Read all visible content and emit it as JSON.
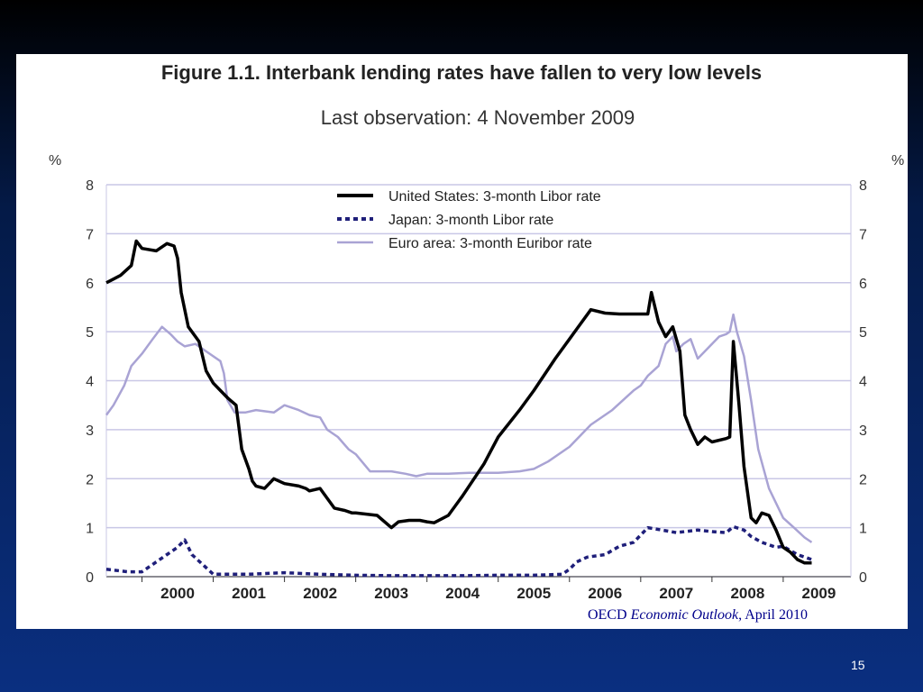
{
  "slide": {
    "number": "15",
    "source_prefix": "OECD ",
    "source_italic": "Economic Outlook",
    "source_suffix": ", April 2010"
  },
  "chart_data": {
    "type": "line",
    "title": "Figure 1.1. Interbank lending rates have fallen to very low levels",
    "subtitle": "Last observation: 4 November 2009",
    "ylabel_left": "%",
    "ylabel_right": "%",
    "ylim": [
      0,
      8
    ],
    "yticks": [
      0,
      1,
      2,
      3,
      4,
      5,
      6,
      7,
      8
    ],
    "xlim": [
      1999.5,
      2009.95
    ],
    "xticks": [
      "2000",
      "2001",
      "2002",
      "2003",
      "2004",
      "2005",
      "2006",
      "2007",
      "2008",
      "2009"
    ],
    "grid": true,
    "legend_position": "top-center",
    "series": [
      {
        "name": "United States: 3-month Libor rate",
        "color": "#000000",
        "style": "solid",
        "x": [
          1999.5,
          1999.7,
          1999.85,
          1999.92,
          2000.0,
          2000.2,
          2000.35,
          2000.45,
          2000.5,
          2000.55,
          2000.65,
          2000.8,
          2000.9,
          2001.0,
          2001.1,
          2001.2,
          2001.32,
          2001.4,
          2001.5,
          2001.55,
          2001.6,
          2001.72,
          2001.85,
          2002.0,
          2002.2,
          2002.3,
          2002.35,
          2002.5,
          2002.7,
          2002.85,
          2002.95,
          2003.0,
          2003.3,
          2003.5,
          2003.6,
          2003.75,
          2003.9,
          2004.0,
          2004.1,
          2004.3,
          2004.5,
          2004.8,
          2005.0,
          2005.3,
          2005.5,
          2005.8,
          2006.0,
          2006.1,
          2006.3,
          2006.5,
          2006.7,
          2006.9,
          2007.0,
          2007.1,
          2007.15,
          2007.25,
          2007.35,
          2007.45,
          2007.55,
          2007.62,
          2007.7,
          2007.8,
          2007.9,
          2008.0,
          2008.2,
          2008.25,
          2008.3,
          2008.38,
          2008.45,
          2008.55,
          2008.62,
          2008.7,
          2008.8,
          2008.9,
          2009.0,
          2009.1,
          2009.2,
          2009.3,
          2009.4
        ],
        "values": [
          6.0,
          6.15,
          6.35,
          6.85,
          6.7,
          6.65,
          6.8,
          6.75,
          6.5,
          5.8,
          5.1,
          4.8,
          4.2,
          3.95,
          3.8,
          3.65,
          3.5,
          2.6,
          2.2,
          1.95,
          1.85,
          1.8,
          2.0,
          1.9,
          1.85,
          1.8,
          1.75,
          1.8,
          1.4,
          1.35,
          1.3,
          1.3,
          1.25,
          1.0,
          1.12,
          1.15,
          1.15,
          1.12,
          1.1,
          1.25,
          1.65,
          2.3,
          2.85,
          3.4,
          3.8,
          4.45,
          4.85,
          5.05,
          5.45,
          5.38,
          5.36,
          5.36,
          5.36,
          5.36,
          5.8,
          5.2,
          4.9,
          5.1,
          4.6,
          3.3,
          3.0,
          2.7,
          2.85,
          2.75,
          2.82,
          2.85,
          4.8,
          3.5,
          2.25,
          1.2,
          1.1,
          1.3,
          1.25,
          0.95,
          0.6,
          0.5,
          0.35,
          0.28,
          0.28
        ]
      },
      {
        "name": "Japan: 3-month Libor rate",
        "color": "#1f1f7a",
        "style": "dashed",
        "x": [
          1999.5,
          1999.8,
          2000.0,
          2000.15,
          2000.35,
          2000.5,
          2000.6,
          2000.7,
          2001.0,
          2001.5,
          2002.0,
          2002.5,
          2003.0,
          2003.5,
          2004.0,
          2004.5,
          2005.0,
          2005.5,
          2005.9,
          2006.0,
          2006.1,
          2006.25,
          2006.5,
          2006.7,
          2006.9,
          2007.0,
          2007.1,
          2007.3,
          2007.5,
          2007.8,
          2008.0,
          2008.2,
          2008.3,
          2008.45,
          2008.55,
          2008.7,
          2008.9,
          2009.0,
          2009.2,
          2009.4
        ],
        "values": [
          0.15,
          0.1,
          0.1,
          0.25,
          0.45,
          0.6,
          0.75,
          0.45,
          0.05,
          0.05,
          0.08,
          0.05,
          0.03,
          0.02,
          0.02,
          0.02,
          0.03,
          0.03,
          0.05,
          0.15,
          0.3,
          0.4,
          0.45,
          0.62,
          0.7,
          0.85,
          1.0,
          0.95,
          0.9,
          0.95,
          0.92,
          0.9,
          1.02,
          0.95,
          0.82,
          0.7,
          0.6,
          0.62,
          0.45,
          0.35
        ]
      },
      {
        "name": "Euro area: 3-month Euribor rate",
        "color": "#a9a3d4",
        "style": "solid",
        "x": [
          1999.5,
          1999.6,
          1999.75,
          1999.85,
          2000.0,
          2000.15,
          2000.28,
          2000.4,
          2000.5,
          2000.6,
          2000.75,
          2000.95,
          2001.1,
          2001.15,
          2001.2,
          2001.3,
          2001.35,
          2001.45,
          2001.6,
          2001.85,
          2002.0,
          2002.2,
          2002.35,
          2002.5,
          2002.6,
          2002.75,
          2002.9,
          2003.0,
          2003.2,
          2003.5,
          2003.7,
          2003.85,
          2004.0,
          2004.3,
          2004.6,
          2005.0,
          2005.3,
          2005.5,
          2005.7,
          2006.0,
          2006.3,
          2006.6,
          2006.9,
          2007.0,
          2007.1,
          2007.25,
          2007.35,
          2007.45,
          2007.5,
          2007.6,
          2007.7,
          2007.8,
          2007.9,
          2008.0,
          2008.1,
          2008.2,
          2008.25,
          2008.3,
          2008.35,
          2008.45,
          2008.55,
          2008.65,
          2008.8,
          2008.9,
          2009.0,
          2009.15,
          2009.3,
          2009.4
        ],
        "values": [
          3.3,
          3.5,
          3.9,
          4.3,
          4.55,
          4.85,
          5.1,
          4.95,
          4.8,
          4.7,
          4.75,
          4.55,
          4.4,
          4.15,
          3.6,
          3.35,
          3.35,
          3.35,
          3.4,
          3.35,
          3.5,
          3.4,
          3.3,
          3.25,
          3.0,
          2.85,
          2.6,
          2.5,
          2.15,
          2.15,
          2.1,
          2.05,
          2.1,
          2.1,
          2.12,
          2.12,
          2.15,
          2.2,
          2.35,
          2.65,
          3.1,
          3.4,
          3.8,
          3.9,
          4.1,
          4.3,
          4.75,
          4.9,
          4.6,
          4.75,
          4.85,
          4.45,
          4.6,
          4.75,
          4.9,
          4.95,
          5.0,
          5.35,
          5.0,
          4.5,
          3.6,
          2.6,
          1.8,
          1.5,
          1.2,
          1.0,
          0.8,
          0.7
        ]
      }
    ]
  }
}
